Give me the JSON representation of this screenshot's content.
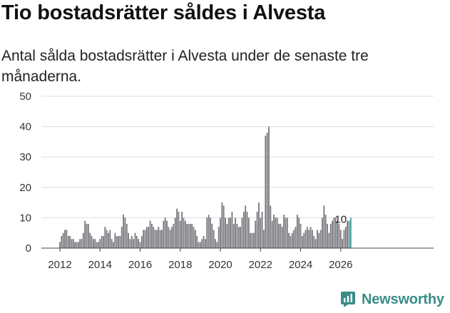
{
  "header": {
    "title": "Tio bostadsrätter såldes i Alvesta",
    "subtitle": "Antal sålda bostadsrätter i Alvesta under de senaste tre månaderna."
  },
  "brand": {
    "name": "Newsworthy",
    "icon": "newsworthy-logo-icon"
  },
  "colors": {
    "bar": "#76767c",
    "highlight": "#2f9e99",
    "grid": "#dddddd",
    "baseline": "#444444",
    "brand": "#3a8c88"
  },
  "chart_data": {
    "type": "bar",
    "title": "Tio bostadsrätter såldes i Alvesta",
    "xlabel": "",
    "ylabel": "",
    "ylim": [
      0,
      50
    ],
    "yticks": [
      0,
      10,
      20,
      30,
      40,
      50
    ],
    "xticks": [
      "2012",
      "2014",
      "2016",
      "2018",
      "2020",
      "2022",
      "2024",
      "2026"
    ],
    "start": "2012-01",
    "end": "2026-01",
    "annotation": {
      "label": "10",
      "period": "2026-01"
    },
    "highlight_last": true,
    "series": [
      {
        "name": "Antal sålda bostadsrätter",
        "values": [
          2,
          4,
          5,
          6,
          6,
          4,
          4,
          3,
          3,
          2,
          2,
          2,
          3,
          3,
          5,
          9,
          8,
          8,
          5,
          4,
          3,
          3,
          2,
          2,
          3,
          4,
          4,
          7,
          6,
          5,
          6,
          3,
          2,
          5,
          4,
          4,
          4,
          7,
          11,
          10,
          8,
          5,
          3,
          4,
          3,
          5,
          4,
          3,
          2,
          4,
          6,
          6,
          7,
          7,
          9,
          8,
          7,
          6,
          6,
          7,
          6,
          6,
          9,
          10,
          9,
          7,
          6,
          7,
          8,
          10,
          13,
          12,
          9,
          12,
          10,
          9,
          8,
          8,
          8,
          8,
          7,
          6,
          4,
          2,
          2,
          3,
          4,
          3,
          10,
          11,
          10,
          8,
          6,
          3,
          2,
          7,
          10,
          15,
          14,
          10,
          8,
          10,
          10,
          12,
          8,
          10,
          8,
          7,
          7,
          10,
          12,
          14,
          12,
          10,
          5,
          5,
          5,
          9,
          12,
          15,
          10,
          12,
          6,
          37,
          38,
          40,
          14,
          9,
          11,
          10,
          10,
          8,
          8,
          7,
          11,
          10,
          10,
          5,
          4,
          5,
          6,
          7,
          11,
          10,
          8,
          4,
          5,
          6,
          7,
          6,
          7,
          6,
          4,
          3,
          6,
          5,
          6,
          10,
          14,
          11,
          8,
          5,
          8,
          9,
          10,
          10,
          9,
          8,
          6,
          3,
          6,
          7,
          9,
          9,
          10
        ]
      }
    ]
  }
}
